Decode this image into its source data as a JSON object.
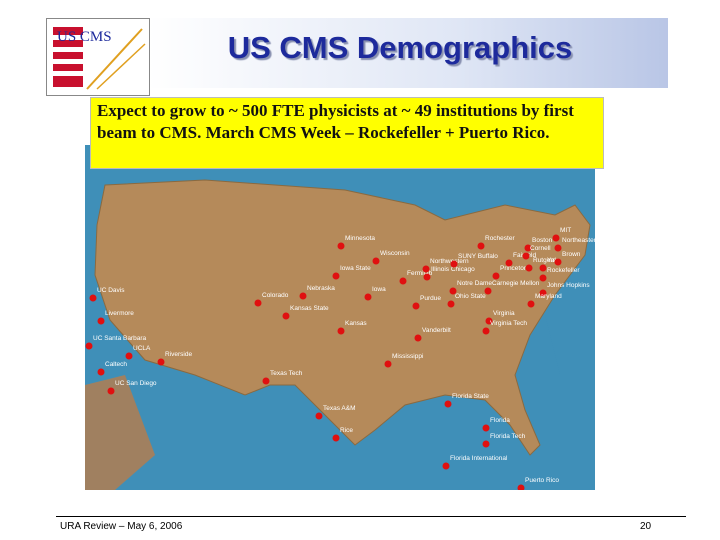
{
  "logo": "US CMS",
  "header": {
    "title": "US CMS Demographics"
  },
  "callout": "Expect to grow to ~ 500 FTE physicists at ~ 49 institutions by first beam to CMS. March CMS Week – Rockefeller + Puerto Rico.",
  "map": {
    "labels": [
      "Minnesota",
      "Wisconsin",
      "Iowa State",
      "Fermilab",
      "Northwestern",
      "Illinois Chicago",
      "Notre Dame",
      "Purdue",
      "Iowa",
      "Nebraska",
      "Kansas State",
      "Kansas",
      "Colorado",
      "UC Davis",
      "Livermore",
      "UC Santa Barbara",
      "UCLA",
      "Riverside",
      "Caltech",
      "UC San Diego",
      "Texas Tech",
      "Texas A&M",
      "Rice",
      "Mississippi",
      "Vanderbilt",
      "Florida State",
      "Florida",
      "Florida Tech",
      "Florida International",
      "Puerto Rico",
      "Ohio State",
      "Carnegie Mellon",
      "Virginia",
      "Virginia Tech",
      "Johns Hopkins",
      "Maryland",
      "Rockefeller",
      "Princeton",
      "Rutgers",
      "Fairfield",
      "Yale",
      "Brown",
      "MIT",
      "Northeastern",
      "Boston",
      "Cornell",
      "Rochester",
      "SUNY Buffalo"
    ]
  },
  "footer": {
    "left": "URA Review – May 6, 2006",
    "page": "20"
  }
}
